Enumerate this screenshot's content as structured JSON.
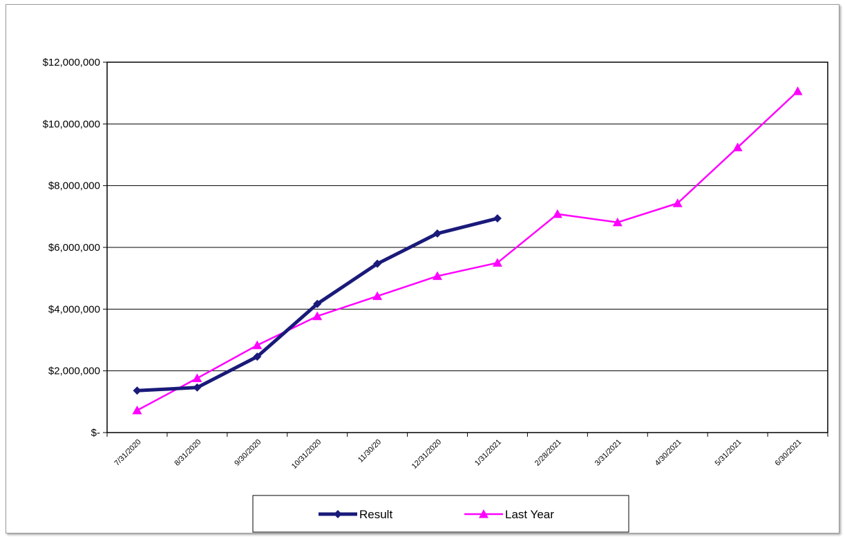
{
  "chart_data": {
    "type": "line",
    "title": "",
    "xlabel": "",
    "ylabel": "",
    "categories": [
      "7/31/2020",
      "8/31/2020",
      "9/30/2020",
      "10/31/2020",
      "11/30/20",
      "12/31/2020",
      "1/31/2021",
      "2/28/2021",
      "3/31/2021",
      "4/30/2021",
      "5/31/2021",
      "6/30/2021"
    ],
    "y_tick_labels": [
      "$-",
      "$2,000,000",
      "$4,000,000",
      "$6,000,000",
      "$8,000,000",
      "$10,000,000",
      "$12,000,000"
    ],
    "ylim": [
      0,
      12000000
    ],
    "y_tick_step": 2000000,
    "grid": true,
    "legend_position": "bottom",
    "series": [
      {
        "name": "Result",
        "color": "#1a1a7a",
        "marker": "diamond",
        "values": [
          1360000,
          1460000,
          2460000,
          4170000,
          5470000,
          6450000,
          6940000,
          null,
          null,
          null,
          null,
          null
        ]
      },
      {
        "name": "Last Year",
        "color": "#ff00ff",
        "marker": "triangle",
        "values": [
          720000,
          1760000,
          2830000,
          3770000,
          4420000,
          5070000,
          5500000,
          7080000,
          6810000,
          7430000,
          9240000,
          11060000
        ]
      }
    ]
  }
}
